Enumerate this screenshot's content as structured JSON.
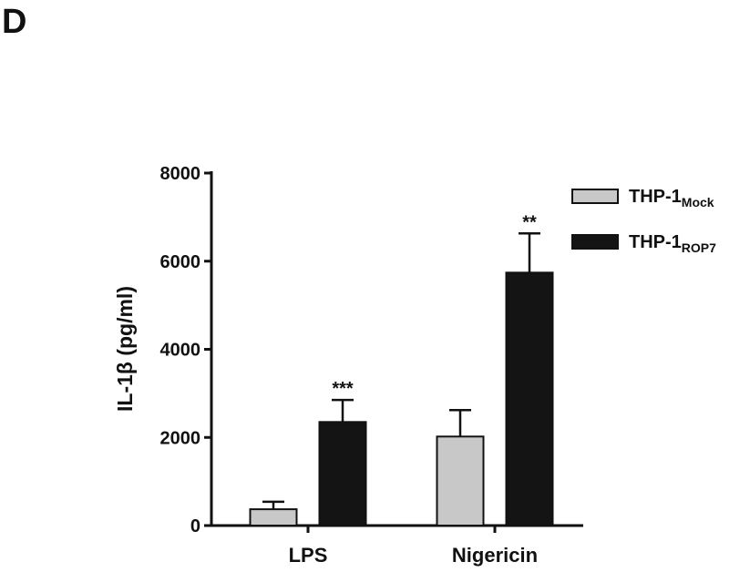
{
  "panel_label": "D",
  "chart_data": {
    "type": "bar",
    "y_label": "IL-1β (pg/ml)",
    "categories": [
      "LPS",
      "Nigericin"
    ],
    "series": [
      {
        "name": "THP-1",
        "subscript": "Mock",
        "color": "#c8c8c8",
        "values": [
          370,
          2020
        ],
        "errors": [
          170,
          600
        ]
      },
      {
        "name": "THP-1",
        "subscript": "ROP7",
        "color": "#141414",
        "values": [
          2350,
          5740
        ],
        "errors": [
          500,
          890
        ],
        "significance": [
          "***",
          "**"
        ]
      }
    ],
    "ylim": [
      0,
      8000
    ],
    "yticks": [
      0,
      2000,
      4000,
      6000,
      8000
    ],
    "grid": false,
    "legend": "upper-right"
  }
}
